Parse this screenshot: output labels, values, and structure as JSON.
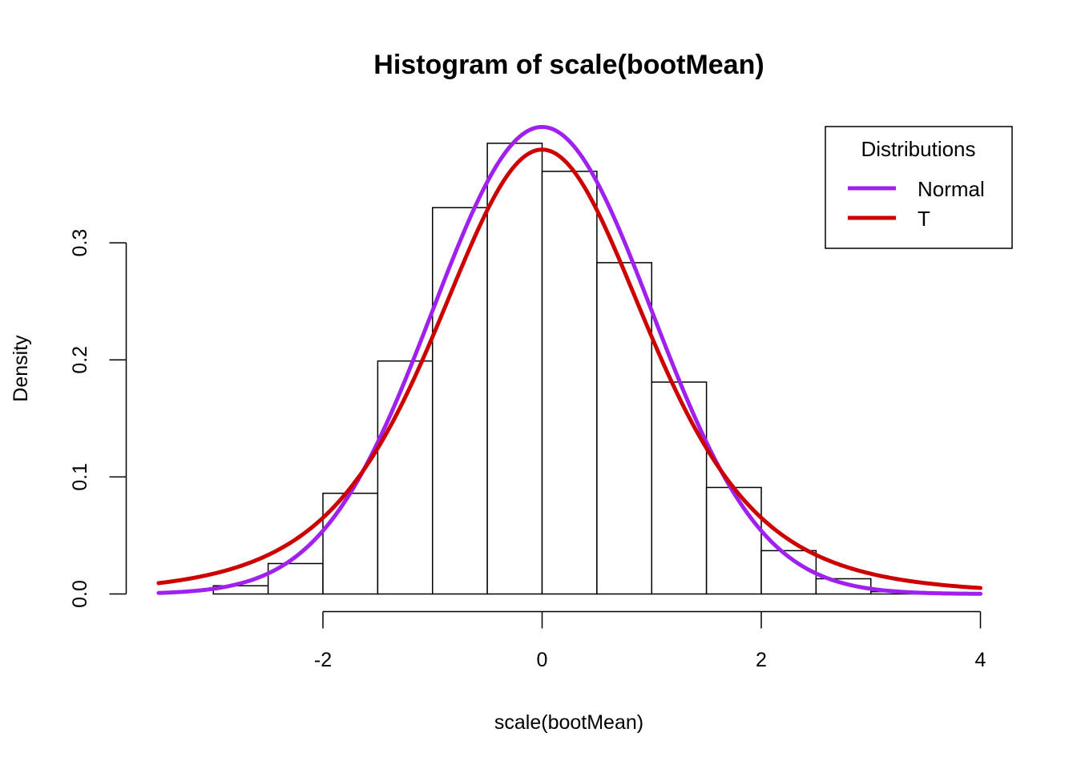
{
  "chart_data": {
    "type": "histogram",
    "title": "Histogram of scale(bootMean)",
    "xlabel": "scale(bootMean)",
    "ylabel": "Density",
    "xlim": [
      -3.5,
      4
    ],
    "ylim": [
      0,
      0.4
    ],
    "x_ticks": [
      -2,
      0,
      2,
      4
    ],
    "x_tick_labels": [
      "-2",
      "0",
      "2",
      "4"
    ],
    "y_ticks": [
      0,
      0.1,
      0.2,
      0.3
    ],
    "y_tick_labels": [
      "0.0",
      "0.1",
      "0.2",
      "0.3"
    ],
    "bins": [
      {
        "x0": -3.0,
        "x1": -2.5,
        "density": 0.007
      },
      {
        "x0": -2.5,
        "x1": -2.0,
        "density": 0.026
      },
      {
        "x0": -2.0,
        "x1": -1.5,
        "density": 0.086
      },
      {
        "x0": -1.5,
        "x1": -1.0,
        "density": 0.199
      },
      {
        "x0": -1.0,
        "x1": -0.5,
        "density": 0.33
      },
      {
        "x0": -0.5,
        "x1": 0.0,
        "density": 0.385
      },
      {
        "x0": 0.0,
        "x1": 0.5,
        "density": 0.361
      },
      {
        "x0": 0.5,
        "x1": 1.0,
        "density": 0.283
      },
      {
        "x0": 1.0,
        "x1": 1.5,
        "density": 0.181
      },
      {
        "x0": 1.5,
        "x1": 2.0,
        "density": 0.091
      },
      {
        "x0": 2.0,
        "x1": 2.5,
        "density": 0.037
      },
      {
        "x0": 2.5,
        "x1": 3.0,
        "density": 0.013
      },
      {
        "x0": 3.0,
        "x1": 3.5,
        "density": 0.002
      }
    ],
    "curves": [
      {
        "name": "Normal",
        "distribution": "normal",
        "mean": 0,
        "sd": 1,
        "color": "#A020F0",
        "x_range": [
          -3.5,
          4
        ]
      },
      {
        "name": "T",
        "distribution": "t",
        "df": 5,
        "color": "#CD0000",
        "x_range": [
          -3.5,
          4
        ]
      }
    ],
    "legend": {
      "title": "Distributions",
      "position": "top-right",
      "entries": [
        "Normal",
        "T"
      ]
    },
    "grid": false
  }
}
